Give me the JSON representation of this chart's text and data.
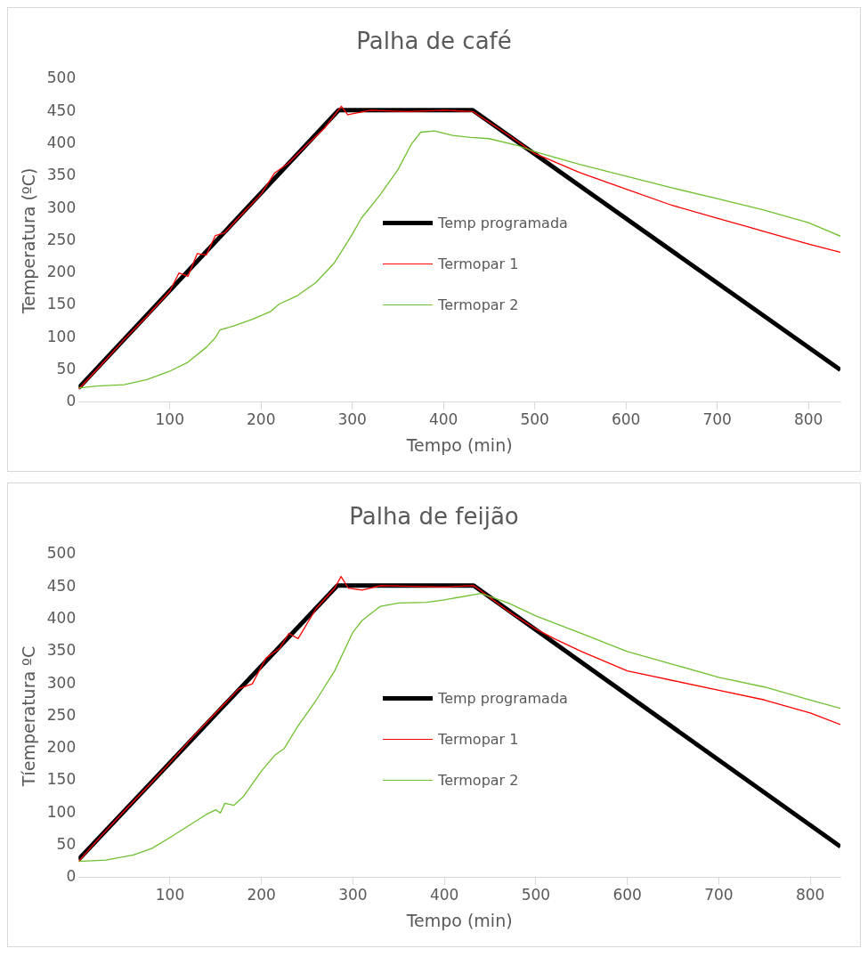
{
  "chart_data": [
    {
      "type": "line",
      "title": "Palha de café",
      "xlabel": "Tempo (min)",
      "ylabel": "Temperatura (ºC)",
      "xlim": [
        0,
        835
      ],
      "xticks": [
        100,
        200,
        300,
        400,
        500,
        600,
        700,
        800
      ],
      "ylim": [
        0,
        500
      ],
      "yticks": [
        0,
        50,
        100,
        150,
        200,
        250,
        300,
        350,
        400,
        450,
        500
      ],
      "grid": false,
      "legend": "center",
      "marker": "none",
      "line_style": "solid",
      "series": [
        {
          "name": "Temp programada",
          "color": "#000000",
          "x": [
            0,
            285,
            432,
            835
          ],
          "values": [
            22,
            452,
            452,
            50
          ]
        },
        {
          "name": "Termopar 1",
          "color": "#ff0000",
          "x": [
            0,
            25,
            50,
            75,
            100,
            110,
            120,
            130,
            140,
            150,
            160,
            175,
            200,
            215,
            230,
            250,
            270,
            288,
            295,
            320,
            360,
            400,
            432,
            470,
            500,
            550,
            600,
            650,
            700,
            750,
            800,
            835
          ],
          "values": [
            20,
            58,
            97,
            133,
            172,
            200,
            195,
            230,
            228,
            258,
            262,
            285,
            322,
            355,
            370,
            398,
            425,
            458,
            445,
            452,
            450,
            452,
            450,
            415,
            385,
            355,
            330,
            305,
            285,
            265,
            245,
            232
          ]
        },
        {
          "name": "Termopar 2",
          "color": "#70c030",
          "x": [
            0,
            20,
            50,
            75,
            100,
            120,
            140,
            150,
            155,
            170,
            190,
            210,
            220,
            240,
            260,
            280,
            300,
            310,
            330,
            350,
            365,
            375,
            390,
            410,
            430,
            450,
            480,
            500,
            550,
            600,
            650,
            700,
            750,
            800,
            835
          ],
          "values": [
            22,
            25,
            27,
            35,
            48,
            62,
            85,
            100,
            112,
            118,
            128,
            140,
            152,
            165,
            185,
            215,
            260,
            285,
            320,
            360,
            400,
            418,
            420,
            413,
            410,
            408,
            398,
            388,
            368,
            350,
            332,
            315,
            298,
            278,
            257
          ]
        }
      ]
    },
    {
      "type": "line",
      "title": "Palha de feijão",
      "xlabel": "Tempo (min)",
      "ylabel": "Tíemperatura ºC",
      "xlim": [
        0,
        833
      ],
      "xticks": [
        100,
        200,
        300,
        400,
        500,
        600,
        700,
        800
      ],
      "ylim": [
        0,
        500
      ],
      "yticks": [
        0,
        50,
        100,
        150,
        200,
        250,
        300,
        350,
        400,
        450,
        500
      ],
      "grid": false,
      "legend": "center",
      "marker": "none",
      "line_style": "solid",
      "series": [
        {
          "name": "Temp programada",
          "color": "#000000",
          "x": [
            0,
            283,
            432,
            833
          ],
          "values": [
            28,
            452,
            452,
            48
          ]
        },
        {
          "name": "Termopar 1",
          "color": "#ff0000",
          "x": [
            0,
            25,
            50,
            75,
            100,
            125,
            150,
            175,
            190,
            205,
            220,
            230,
            240,
            260,
            280,
            287,
            295,
            310,
            330,
            400,
            432,
            470,
            500,
            520,
            550,
            600,
            650,
            700,
            750,
            800,
            833
          ],
          "values": [
            25,
            65,
            103,
            140,
            178,
            218,
            255,
            292,
            300,
            340,
            355,
            378,
            370,
            417,
            448,
            466,
            448,
            445,
            452,
            450,
            452,
            412,
            385,
            370,
            350,
            320,
            305,
            290,
            275,
            255,
            237
          ]
        },
        {
          "name": "Termopar 2",
          "color": "#70c030",
          "x": [
            0,
            30,
            60,
            80,
            100,
            120,
            140,
            150,
            155,
            160,
            170,
            180,
            200,
            215,
            225,
            240,
            260,
            280,
            300,
            310,
            330,
            350,
            380,
            400,
            440,
            470,
            500,
            550,
            600,
            650,
            700,
            750,
            800,
            833
          ],
          "values": [
            25,
            27,
            35,
            45,
            62,
            80,
            98,
            105,
            100,
            115,
            112,
            125,
            165,
            190,
            200,
            235,
            275,
            320,
            380,
            398,
            420,
            425,
            426,
            430,
            440,
            425,
            405,
            378,
            350,
            330,
            310,
            295,
            275,
            262
          ]
        }
      ]
    }
  ]
}
